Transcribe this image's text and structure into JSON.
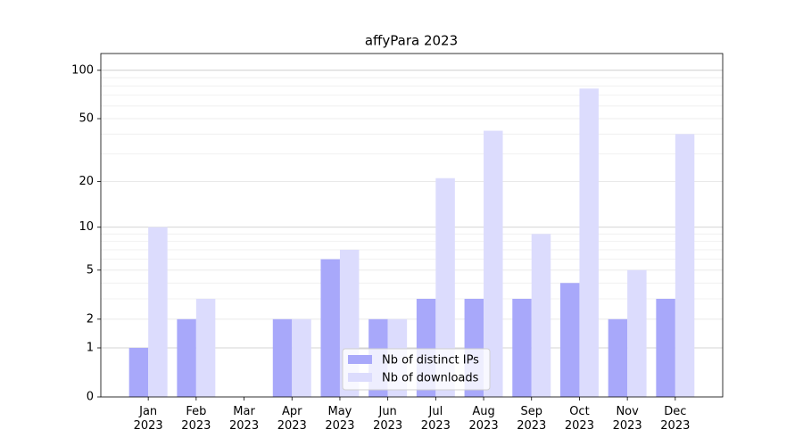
{
  "chart_data": {
    "type": "bar",
    "title": "affyPara 2023",
    "categories": [
      "Jan\n2023",
      "Feb\n2023",
      "Mar\n2023",
      "Apr\n2023",
      "May\n2023",
      "Jun\n2023",
      "Jul\n2023",
      "Aug\n2023",
      "Sep\n2023",
      "Oct\n2023",
      "Nov\n2023",
      "Dec\n2023"
    ],
    "series": [
      {
        "name": "Nb of distinct IPs",
        "color": "#a8a8fa",
        "values": [
          1,
          2,
          0,
          2,
          6,
          2,
          3,
          3,
          3,
          4,
          2,
          3
        ]
      },
      {
        "name": "Nb of downloads",
        "color": "#dcdcfd",
        "values": [
          10,
          3,
          0,
          2,
          7,
          2,
          21,
          42,
          9,
          77,
          5,
          40
        ]
      }
    ],
    "yscale": "log1p",
    "ylim": [
      0,
      127
    ],
    "yticks": [
      0,
      1,
      2,
      5,
      10,
      20,
      50,
      100
    ],
    "minor_yticks": [
      3,
      4,
      6,
      7,
      8,
      9,
      30,
      40,
      60,
      70,
      80,
      90
    ],
    "grid": true,
    "legend": "lower center"
  }
}
